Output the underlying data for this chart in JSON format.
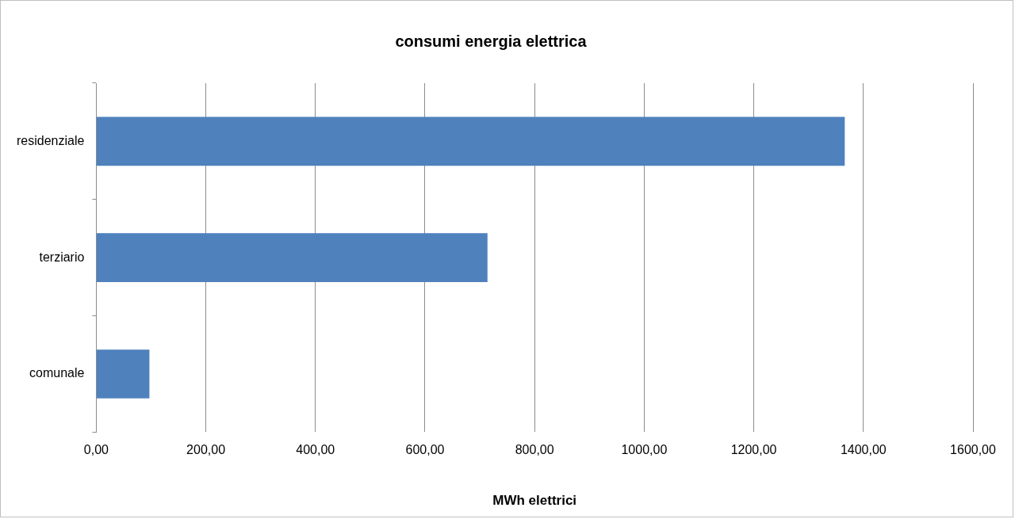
{
  "chart_data": {
    "type": "bar",
    "orientation": "horizontal",
    "title": "consumi energia elettrica",
    "xlabel": "MWh elettrici",
    "categories": [
      "residenziale",
      "terziario",
      "comunale"
    ],
    "values": [
      1366,
      714,
      97
    ],
    "color": "#4f81bd",
    "xlim": [
      0,
      1600
    ],
    "xticks": [
      {
        "value": 0,
        "label": "0,00"
      },
      {
        "value": 200,
        "label": "200,00"
      },
      {
        "value": 400,
        "label": "400,00"
      },
      {
        "value": 600,
        "label": "600,00"
      },
      {
        "value": 800,
        "label": "800,00"
      },
      {
        "value": 1000,
        "label": "1000,00"
      },
      {
        "value": 1200,
        "label": "1200,00"
      },
      {
        "value": 1400,
        "label": "1400,00"
      },
      {
        "value": 1600,
        "label": "1600,00"
      }
    ],
    "grid": "x",
    "legend": false
  }
}
